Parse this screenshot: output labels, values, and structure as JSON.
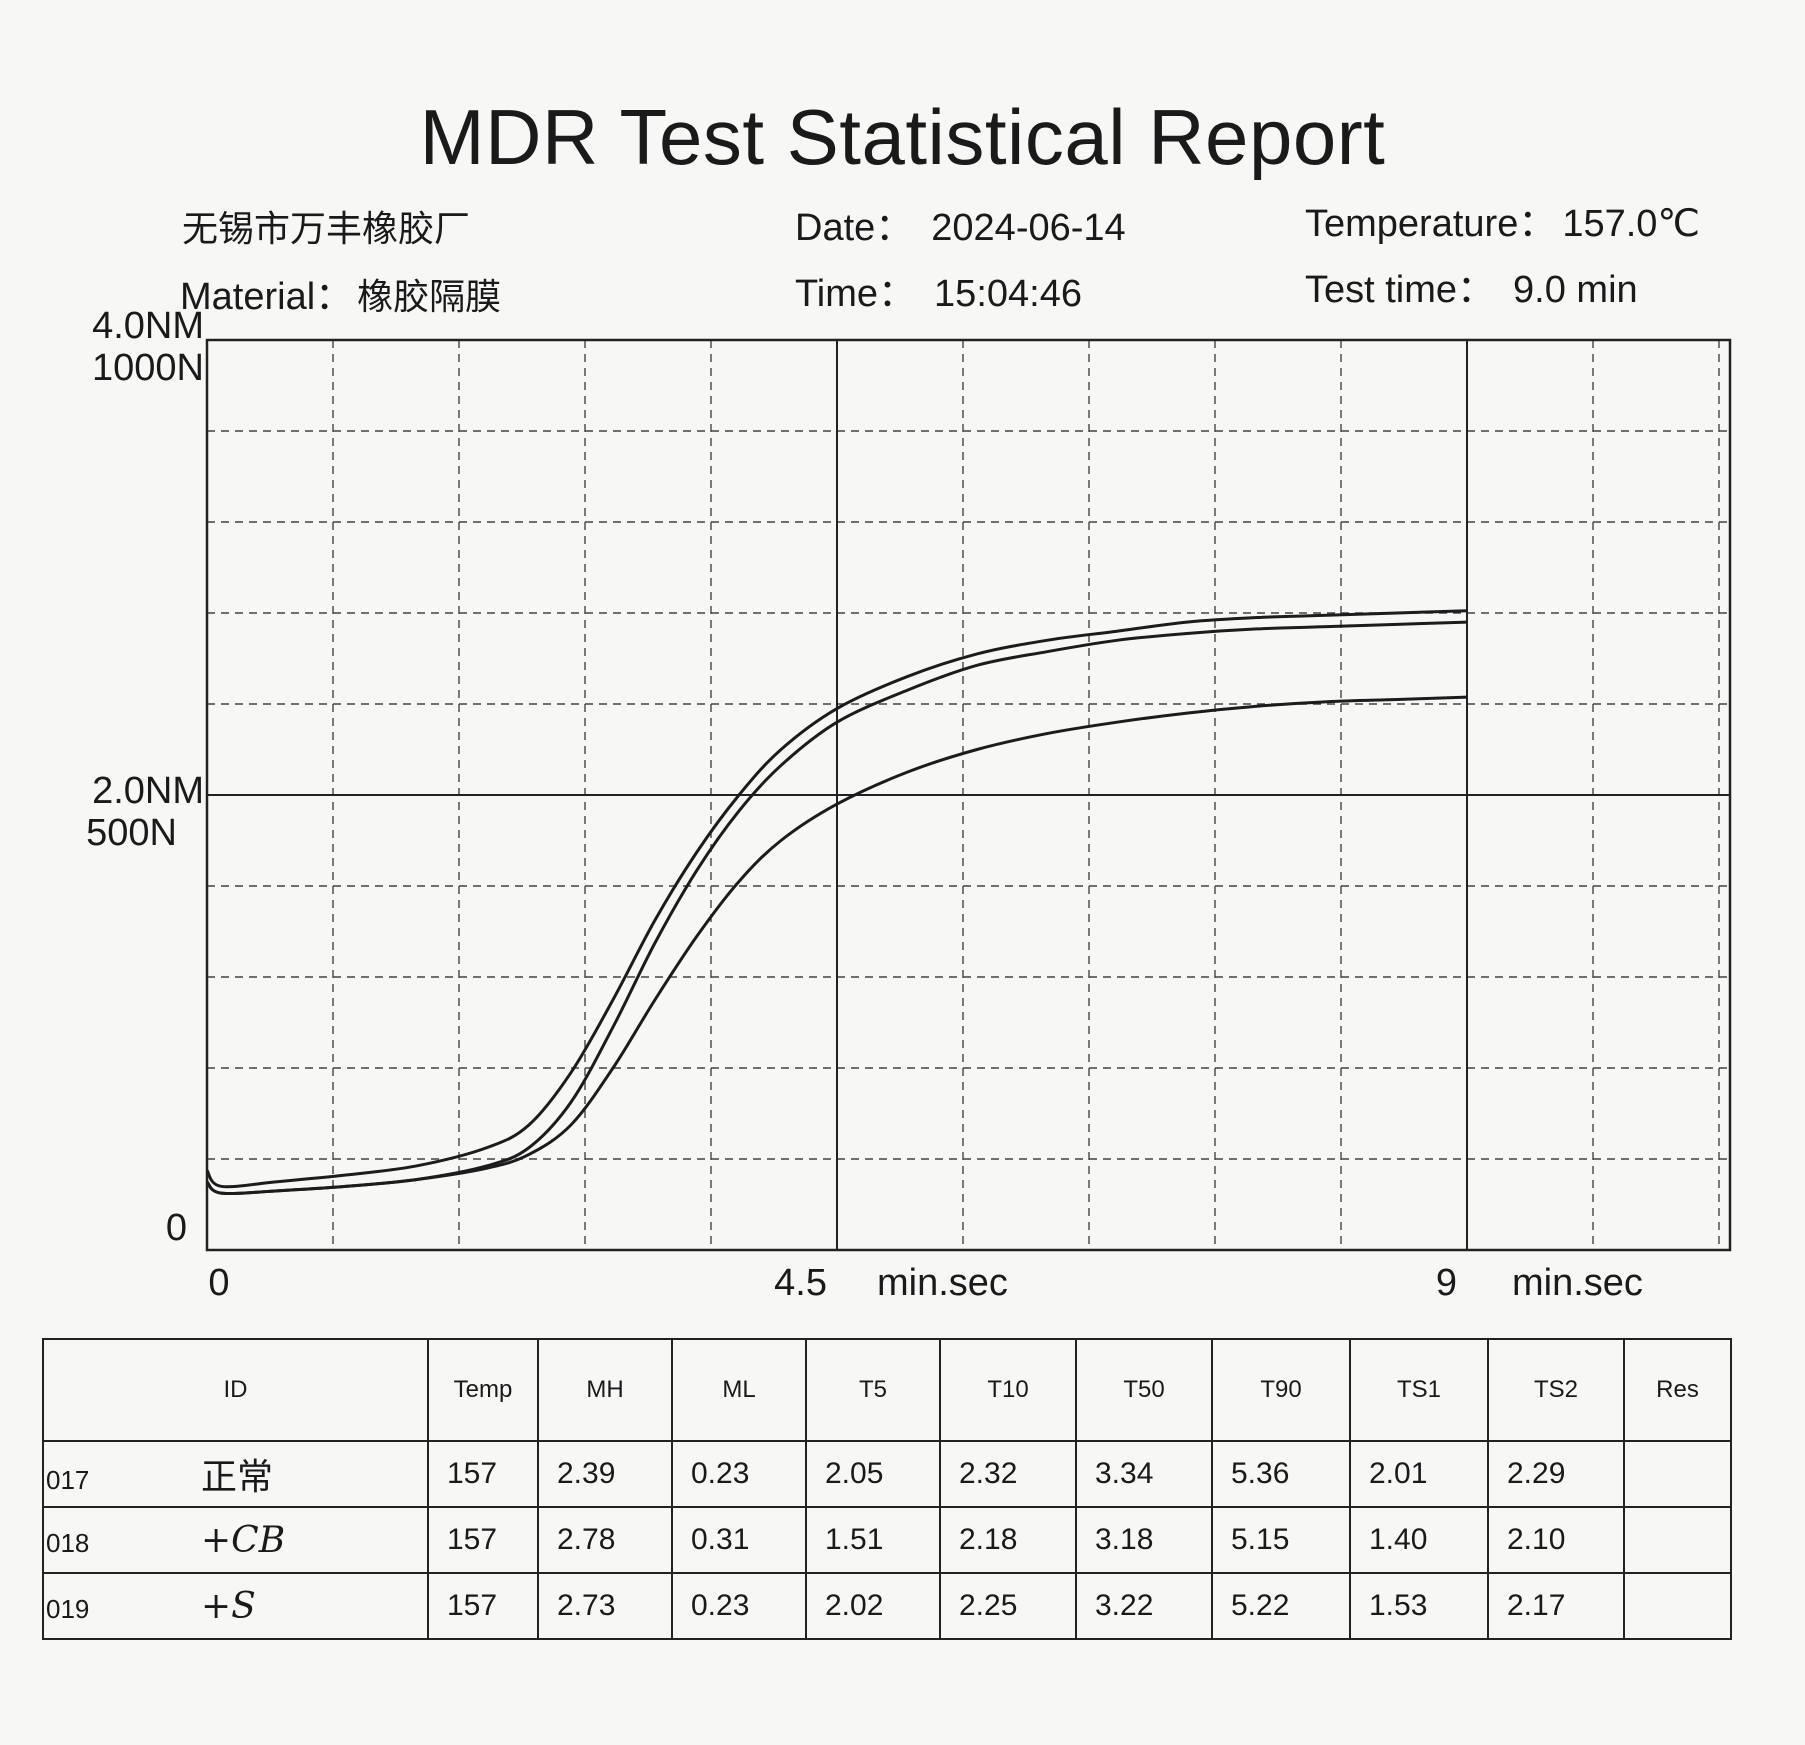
{
  "report": {
    "title": "MDR Test Statistical Report",
    "company": "无锡市万丰橡胶厂",
    "material_label": "Material：",
    "material_value": "橡胶隔膜",
    "date_label": "Date：",
    "date_value": "2024-06-14",
    "time_label": "Time：",
    "time_value": "15:04:46",
    "temperature_label": "Temperature：",
    "temperature_value": "157.0℃",
    "test_time_label": "Test time：",
    "test_time_value": "9.0 min"
  },
  "chart_data": {
    "type": "line",
    "xlim": [
      0,
      9
    ],
    "ylim": [
      0,
      4
    ],
    "x_ticks": [
      {
        "value": 0,
        "label": "0"
      },
      {
        "value": 4.5,
        "label": "4.5"
      },
      {
        "value": 9,
        "label": "9"
      }
    ],
    "x_unit_labels": [
      "min.sec",
      "min.sec"
    ],
    "y_ticks": [
      {
        "value": 0,
        "label": "0",
        "label2": ""
      },
      {
        "value": 2,
        "label": "2.0NM",
        "label2": "500N"
      },
      {
        "value": 4,
        "label": "4.0NM",
        "label2": "1000N"
      }
    ],
    "grid": true,
    "series": [
      {
        "x": [
          0,
          0.1,
          0.5,
          1.0,
          1.5,
          2.0,
          2.3,
          2.6,
          2.9,
          3.2,
          3.5,
          3.8,
          4.1,
          4.5,
          5.0,
          5.5,
          6.0,
          6.5,
          7.0,
          7.5,
          8.0,
          8.5,
          9.0
        ],
        "y": [
          0.35,
          0.28,
          0.3,
          0.33,
          0.37,
          0.45,
          0.55,
          0.78,
          1.1,
          1.45,
          1.75,
          2.0,
          2.2,
          2.38,
          2.52,
          2.62,
          2.68,
          2.72,
          2.76,
          2.78,
          2.79,
          2.8,
          2.81
        ]
      },
      {
        "x": [
          0,
          0.1,
          0.5,
          1.0,
          1.5,
          2.0,
          2.3,
          2.6,
          2.9,
          3.2,
          3.5,
          3.8,
          4.1,
          4.5,
          5.0,
          5.5,
          6.0,
          6.5,
          7.0,
          7.5,
          8.0,
          8.5,
          9.0
        ],
        "y": [
          0.3,
          0.25,
          0.26,
          0.28,
          0.31,
          0.37,
          0.45,
          0.65,
          0.98,
          1.35,
          1.67,
          1.93,
          2.13,
          2.32,
          2.46,
          2.57,
          2.63,
          2.68,
          2.71,
          2.73,
          2.74,
          2.75,
          2.76
        ]
      },
      {
        "x": [
          0,
          0.1,
          0.5,
          1.0,
          1.5,
          2.0,
          2.3,
          2.6,
          2.9,
          3.2,
          3.5,
          3.8,
          4.1,
          4.5,
          5.0,
          5.5,
          6.0,
          6.5,
          7.0,
          7.5,
          8.0,
          8.5,
          9.0
        ],
        "y": [
          0.3,
          0.25,
          0.26,
          0.28,
          0.31,
          0.36,
          0.42,
          0.55,
          0.8,
          1.1,
          1.38,
          1.62,
          1.8,
          1.96,
          2.1,
          2.2,
          2.27,
          2.32,
          2.36,
          2.39,
          2.41,
          2.42,
          2.43
        ]
      }
    ]
  },
  "table": {
    "headers": [
      "ID",
      "Temp",
      "MH",
      "ML",
      "T5",
      "T10",
      "T50",
      "T90",
      "TS1",
      "TS2",
      "Res"
    ],
    "rows": [
      {
        "id": "017",
        "note": "正常",
        "values": [
          "157",
          "2.39",
          "0.23",
          "2.05",
          "2.32",
          "3.34",
          "5.36",
          "2.01",
          "2.29",
          ""
        ]
      },
      {
        "id": "018",
        "note": "+CB",
        "values": [
          "157",
          "2.78",
          "0.31",
          "1.51",
          "2.18",
          "3.18",
          "5.15",
          "1.40",
          "2.10",
          ""
        ]
      },
      {
        "id": "019",
        "note": "+S",
        "values": [
          "157",
          "2.73",
          "0.23",
          "2.02",
          "2.25",
          "3.22",
          "5.22",
          "1.53",
          "2.17",
          ""
        ]
      }
    ]
  }
}
